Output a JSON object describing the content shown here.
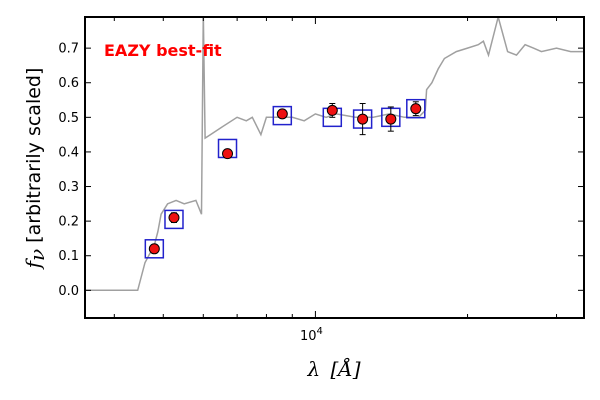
{
  "chart_data": {
    "type": "scatter",
    "annotation": "EAZY best-fit",
    "xlabel_symbol": "λ",
    "xlabel_unit": "[Å]",
    "ylabel_symbol": "f",
    "ylabel_sub": "ν",
    "ylabel_text": "[arbitrarily scaled]",
    "xscale": "log",
    "xlim": [
      3500,
      34000
    ],
    "ylim": [
      -0.08,
      0.79
    ],
    "yticks": [
      0.0,
      0.1,
      0.2,
      0.3,
      0.4,
      0.5,
      0.6,
      0.7
    ],
    "ytick_labels": [
      "0.0",
      "0.1",
      "0.2",
      "0.3",
      "0.4",
      "0.5",
      "0.6",
      "0.7"
    ],
    "xtick_label_base": "10",
    "xtick_label_exp": "4",
    "xtick_value": 10000,
    "grid": false,
    "colors": {
      "annotation": "#ff0000",
      "template": "#a0a0a0",
      "observed_fill": "#ee1111",
      "model_box": "#2222cc"
    },
    "template_sed": {
      "x": [
        3500,
        4450,
        4600,
        4800,
        4880,
        4950,
        5100,
        5300,
        5500,
        5800,
        5950,
        6000,
        6050,
        6200,
        6500,
        7000,
        7300,
        7500,
        7800,
        8000,
        8500,
        9000,
        9500,
        10000,
        10500,
        11000,
        12000,
        13000,
        14000,
        15000,
        16000,
        16500,
        16600,
        17000,
        17500,
        18000,
        19000,
        20000,
        21000,
        21500,
        22000,
        23000,
        24000,
        25000,
        26000,
        27000,
        28000,
        30000,
        32000,
        34000
      ],
      "y": [
        0.0,
        0.0,
        0.08,
        0.13,
        0.17,
        0.22,
        0.25,
        0.26,
        0.25,
        0.26,
        0.22,
        0.8,
        0.44,
        0.45,
        0.47,
        0.5,
        0.49,
        0.5,
        0.45,
        0.5,
        0.5,
        0.5,
        0.49,
        0.51,
        0.5,
        0.51,
        0.5,
        0.5,
        0.51,
        0.5,
        0.5,
        0.52,
        0.58,
        0.6,
        0.64,
        0.67,
        0.69,
        0.7,
        0.71,
        0.72,
        0.68,
        0.79,
        0.69,
        0.68,
        0.71,
        0.7,
        0.69,
        0.7,
        0.69,
        0.69
      ]
    },
    "model_photometry": {
      "x": [
        4800,
        5250,
        6700,
        8600,
        10800,
        12400,
        14100,
        15800
      ],
      "y": [
        0.12,
        0.205,
        0.41,
        0.505,
        0.5,
        0.495,
        0.5,
        0.525
      ]
    },
    "observed_photometry": {
      "x": [
        4800,
        5250,
        6700,
        8600,
        10800,
        12400,
        14100,
        15800
      ],
      "y": [
        0.12,
        0.21,
        0.395,
        0.51,
        0.52,
        0.495,
        0.495,
        0.525
      ],
      "err": [
        0.012,
        0.014,
        0.012,
        0.01,
        0.02,
        0.045,
        0.035,
        0.02
      ]
    }
  }
}
